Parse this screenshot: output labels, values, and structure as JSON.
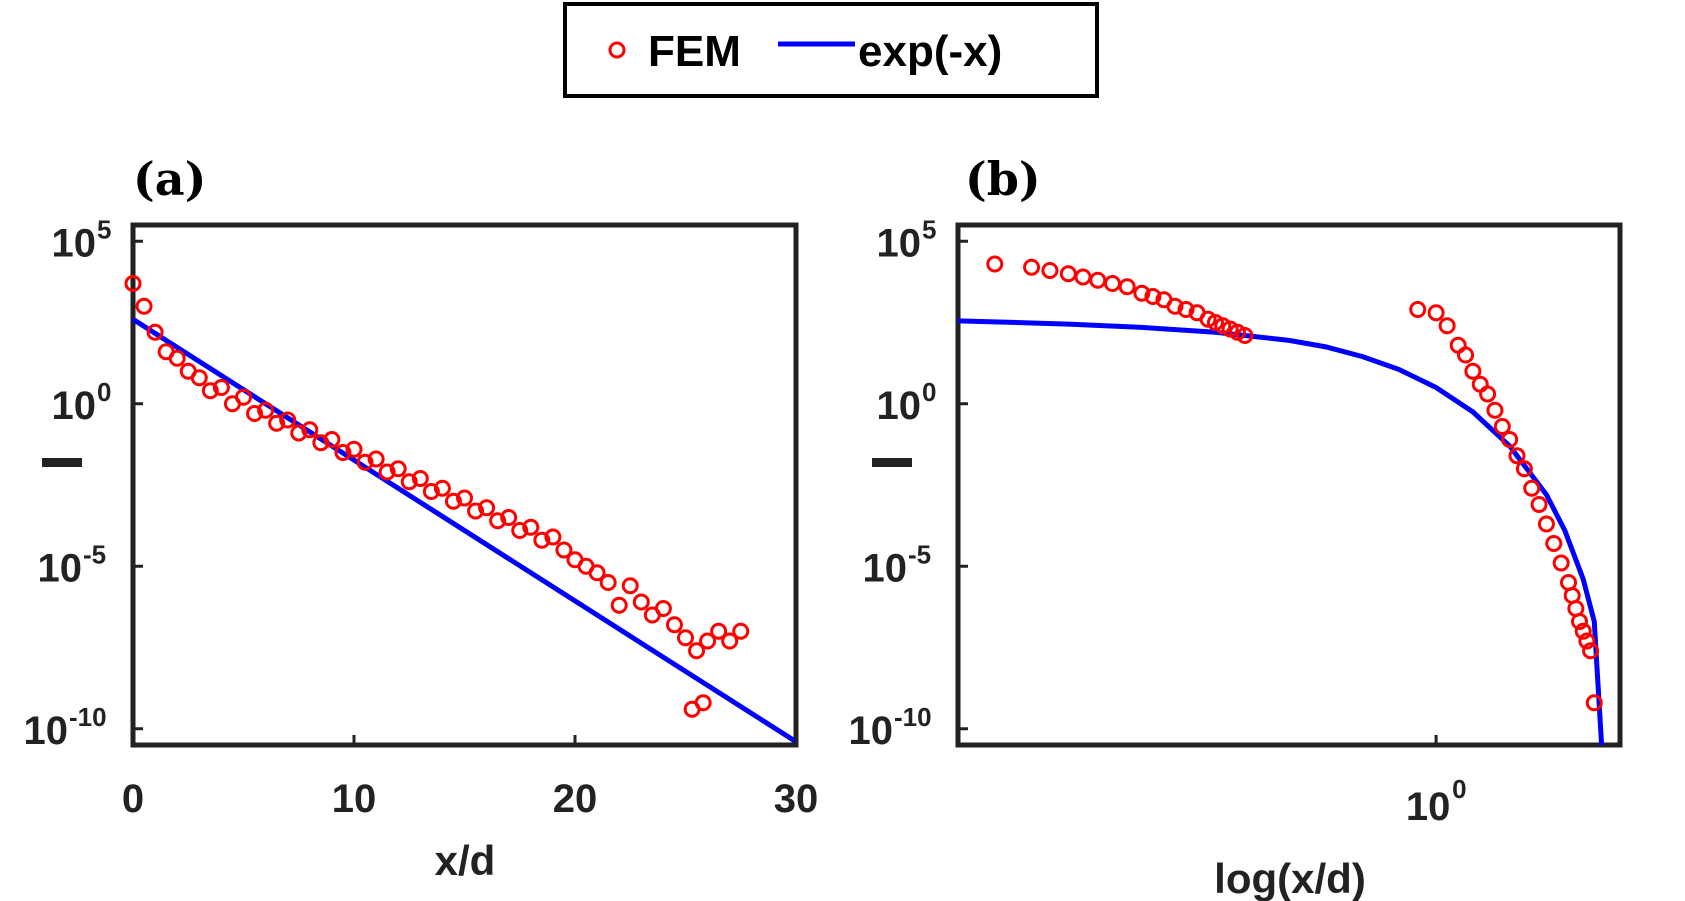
{
  "legend": {
    "entries": [
      {
        "label": "FEM",
        "marker": "circle",
        "color": "#ff0000"
      },
      {
        "label": "exp(-x)",
        "marker": "line",
        "color": "#0000ff"
      }
    ]
  },
  "colors": {
    "fem": "#ff0000",
    "fit": "#0000ff",
    "axes": "#222222"
  },
  "chart_data": [
    {
      "panel_label": "(a)",
      "type": "scatter",
      "xlabel": "x/d",
      "ylabel": "—",
      "y_scale": "log",
      "xlim": [
        0,
        30
      ],
      "ylim_exponent": [
        -10.5,
        5
      ],
      "x_ticks": [
        "0",
        "10",
        "20",
        "30"
      ],
      "y_ticks": [
        {
          "base": "10",
          "exp": "5"
        },
        {
          "base": "10",
          "exp": "0"
        },
        {
          "base": "10",
          "exp": "-5"
        },
        {
          "base": "10",
          "exp": "-10"
        }
      ],
      "series": [
        {
          "name": "FEM",
          "style": "markers",
          "x": [
            0,
            0.5,
            1.0,
            1.5,
            2.0,
            2.5,
            3.0,
            3.5,
            4.0,
            4.5,
            5.0,
            5.5,
            6.0,
            6.5,
            7.0,
            7.5,
            8.0,
            8.5,
            9.0,
            9.5,
            10.0,
            10.5,
            11.0,
            11.5,
            12.0,
            12.5,
            13.0,
            13.5,
            14.0,
            14.5,
            15.0,
            15.5,
            16.0,
            16.5,
            17.0,
            17.5,
            18.0,
            18.5,
            19.0,
            19.5,
            20.0,
            20.5,
            21.0,
            21.5,
            22.0,
            22.5,
            23.0,
            23.5,
            24.0,
            24.5,
            25.0,
            25.5,
            26.0,
            26.5,
            27.0,
            27.5,
            25.3,
            25.8
          ],
          "y_exponent": [
            3.7,
            3.0,
            2.2,
            1.6,
            1.4,
            1.0,
            0.8,
            0.4,
            0.5,
            0.0,
            0.2,
            -0.3,
            -0.2,
            -0.6,
            -0.5,
            -0.9,
            -0.8,
            -1.2,
            -1.1,
            -1.5,
            -1.4,
            -1.8,
            -1.7,
            -2.1,
            -2.0,
            -2.4,
            -2.3,
            -2.7,
            -2.6,
            -3.0,
            -2.9,
            -3.3,
            -3.2,
            -3.6,
            -3.5,
            -3.9,
            -3.8,
            -4.2,
            -4.1,
            -4.5,
            -4.8,
            -5.0,
            -5.2,
            -5.5,
            -6.2,
            -5.6,
            -6.1,
            -6.5,
            -6.3,
            -6.8,
            -7.2,
            -7.6,
            -7.3,
            -7.0,
            -7.3,
            -7.0,
            -9.4,
            -9.2
          ]
        },
        {
          "name": "exp(-x)",
          "style": "line",
          "x": [
            0,
            30
          ],
          "y_exponent": [
            2.6,
            -10.4
          ]
        }
      ]
    },
    {
      "panel_label": "(b)",
      "type": "scatter",
      "xlabel": "log(x/d)",
      "ylabel": "—",
      "x_scale": "log",
      "y_scale": "log",
      "xlim_log10": [
        -1.3,
        0.5
      ],
      "ylim_exponent": [
        -10.5,
        5
      ],
      "x_ticks": [
        {
          "base": "10",
          "exp": "0",
          "log10": 0
        }
      ],
      "y_ticks": [
        {
          "base": "10",
          "exp": "5"
        },
        {
          "base": "10",
          "exp": "0"
        },
        {
          "base": "10",
          "exp": "-5"
        },
        {
          "base": "10",
          "exp": "-10"
        }
      ],
      "series": [
        {
          "name": "FEM",
          "style": "markers",
          "x_log10": [
            -1.2,
            -1.1,
            -1.05,
            -1.0,
            -0.96,
            -0.92,
            -0.88,
            -0.84,
            -0.8,
            -0.77,
            -0.74,
            -0.71,
            -0.68,
            -0.65,
            -0.62,
            -0.6,
            -0.58,
            -0.56,
            -0.54,
            -0.52,
            -0.05,
            0.0,
            0.03,
            0.06,
            0.08,
            0.1,
            0.12,
            0.14,
            0.16,
            0.18,
            0.2,
            0.22,
            0.24,
            0.26,
            0.28,
            0.3,
            0.32,
            0.34,
            0.36,
            0.37,
            0.38,
            0.39,
            0.4,
            0.41,
            0.42,
            0.43
          ],
          "y_exponent": [
            4.3,
            4.2,
            4.1,
            4.0,
            3.9,
            3.8,
            3.7,
            3.6,
            3.4,
            3.3,
            3.2,
            3.0,
            2.9,
            2.8,
            2.6,
            2.5,
            2.4,
            2.3,
            2.2,
            2.1,
            2.9,
            2.8,
            2.4,
            1.8,
            1.5,
            1.0,
            0.6,
            0.3,
            -0.2,
            -0.7,
            -1.1,
            -1.6,
            -2.0,
            -2.6,
            -3.1,
            -3.7,
            -4.3,
            -4.9,
            -5.5,
            -5.9,
            -6.3,
            -6.7,
            -7.0,
            -7.3,
            -7.6,
            -9.2
          ]
        },
        {
          "name": "exp(-x)",
          "style": "line",
          "x_log10": [
            -1.3,
            -1.2,
            -1.0,
            -0.8,
            -0.6,
            -0.4,
            -0.3,
            -0.2,
            -0.1,
            0.0,
            0.1,
            0.2,
            0.3,
            0.35,
            0.4,
            0.43,
            0.45
          ],
          "y_exponent": [
            2.55,
            2.52,
            2.45,
            2.35,
            2.2,
            1.95,
            1.75,
            1.45,
            1.05,
            0.5,
            -0.25,
            -1.3,
            -2.8,
            -3.9,
            -5.4,
            -6.7,
            -10.5
          ]
        }
      ]
    }
  ]
}
